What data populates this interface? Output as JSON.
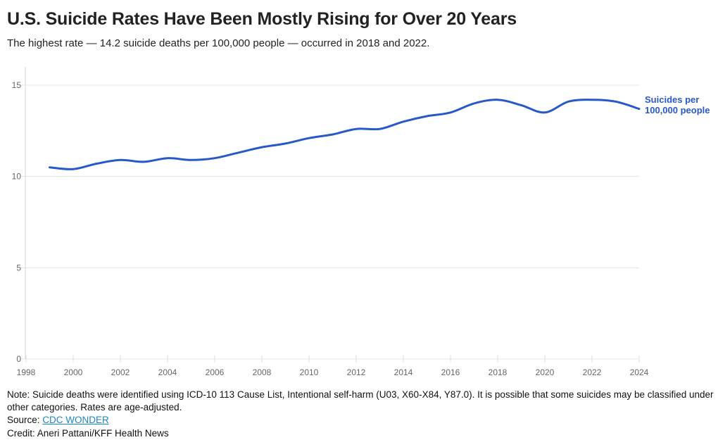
{
  "header": {
    "title": "U.S. Suicide Rates Have Been Mostly Rising for Over 20 Years",
    "subtitle": "The highest rate — 14.2 suicide deaths per 100,000 people — occurred in 2018 and 2022."
  },
  "chart_data": {
    "type": "line",
    "title": "U.S. Suicide Rates Have Been Mostly Rising for Over 20 Years",
    "subtitle": "The highest rate — 14.2 suicide deaths per 100,000 people — occurred in 2018 and 2022.",
    "x": [
      1999,
      2000,
      2001,
      2002,
      2003,
      2004,
      2005,
      2006,
      2007,
      2008,
      2009,
      2010,
      2011,
      2012,
      2013,
      2014,
      2015,
      2016,
      2017,
      2018,
      2019,
      2020,
      2021,
      2022,
      2023,
      2024
    ],
    "series": [
      {
        "name": "Suicides per 100,000 people",
        "values": [
          10.5,
          10.4,
          10.7,
          10.9,
          10.8,
          11.0,
          10.9,
          11.0,
          11.3,
          11.6,
          11.8,
          12.1,
          12.3,
          12.6,
          12.6,
          13.0,
          13.3,
          13.5,
          14.0,
          14.2,
          13.9,
          13.5,
          14.1,
          14.2,
          14.1,
          13.7
        ]
      }
    ],
    "series_label_lines": [
      "Suicides per",
      "100,000 people"
    ],
    "xlabel": "",
    "ylabel": "",
    "xlim": [
      1998,
      2024
    ],
    "ylim": [
      0,
      16
    ],
    "xticks": [
      1998,
      2000,
      2002,
      2004,
      2006,
      2008,
      2010,
      2012,
      2014,
      2016,
      2018,
      2020,
      2022,
      2024
    ],
    "yticks": [
      0,
      5,
      10,
      15
    ],
    "grid": "horizontal",
    "legend_position": "right-of-line-end",
    "line_color": "#2859c8"
  },
  "footer": {
    "note": "Note: Suicide deaths were identified using ICD-10 113 Cause List, Intentional self-harm (U03, X60-X84, Y87.0). It is possible that some suicides may be classified under other categories. Rates are age-adjusted.",
    "source_label": "Source: ",
    "source_link": "CDC WONDER",
    "credit": "Credit: Aneri Pattani/KFF Health News"
  }
}
